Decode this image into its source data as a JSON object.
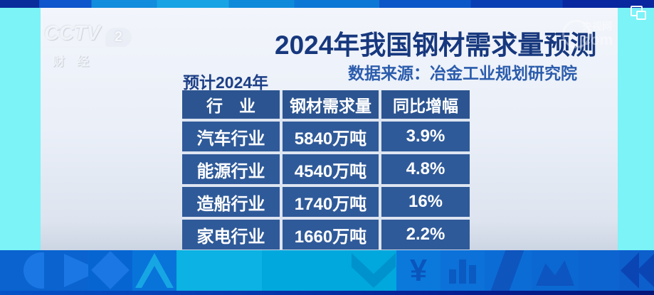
{
  "channel": {
    "name": "CCTV",
    "number": "2",
    "subtitle": "财经"
  },
  "header": {
    "title": "2024年我国钢材需求量预测",
    "source": "数据来源：冶金工业规划研究院"
  },
  "table_caption": "预计2024年",
  "table": {
    "columns": [
      "行　业",
      "钢材需求量",
      "同比增幅"
    ],
    "rows": [
      [
        "汽车行业",
        "5840万吨",
        "3.9%"
      ],
      [
        "能源行业",
        "4540万吨",
        "4.8%"
      ],
      [
        "造船行业",
        "1740万吨",
        "16%"
      ],
      [
        "家电行业",
        "1660万吨",
        "2.2%"
      ]
    ]
  },
  "watermark": {
    "brand": "央视网",
    "domain": "com"
  },
  "banner": {
    "yen_symbol": "¥"
  },
  "colors": {
    "accent_cyan": "#7bf3f7",
    "title_navy": "#17387e",
    "subtitle_blue": "#2b5cac",
    "table_header_blue": "#2c5491",
    "table_cell_blue": "#2f5a99",
    "banner_blue": "#0b6ed8"
  },
  "chart_data": {
    "type": "table",
    "title": "2024年我国钢材需求量预测",
    "subtitle": "数据来源：冶金工业规划研究院",
    "caption": "预计2024年",
    "columns": [
      "行业",
      "钢材需求量",
      "同比增幅"
    ],
    "rows": [
      {
        "industry": "汽车行业",
        "steel_demand": "5840万吨",
        "steel_demand_wan_tons": 5840,
        "yoy_growth": "3.9%",
        "yoy_growth_pct": 3.9
      },
      {
        "industry": "能源行业",
        "steel_demand": "4540万吨",
        "steel_demand_wan_tons": 4540,
        "yoy_growth": "4.8%",
        "yoy_growth_pct": 4.8
      },
      {
        "industry": "造船行业",
        "steel_demand": "1740万吨",
        "steel_demand_wan_tons": 1740,
        "yoy_growth": "16%",
        "yoy_growth_pct": 16
      },
      {
        "industry": "家电行业",
        "steel_demand": "1660万吨",
        "steel_demand_wan_tons": 1660,
        "yoy_growth": "2.2%",
        "yoy_growth_pct": 2.2
      }
    ]
  }
}
